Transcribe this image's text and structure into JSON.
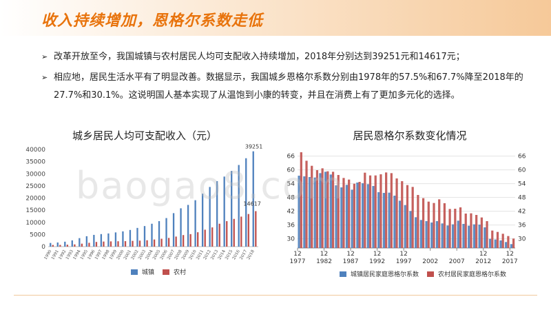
{
  "slide": {
    "title": "收入持续增加，恩格尔系数走低",
    "bullets": [
      "改革开放至今，我国城镇与农村居民人均可支配收入持续增加，2018年分别达到39251元和14617元；",
      "相应地，居民生活水平有了明显改善。数据显示，我国城乡恩格尔系数分别由1978年的57.5%和67.7%降至2018年的27.7%和30.1%。这说明国人基本实现了从温饱到小康的转变，并且在消费上有了更加多元化的选择。"
    ],
    "watermark": "baogao8.com",
    "arrow_glyph": "➢",
    "colors": {
      "title": "#e8730c",
      "urban": "#4f81bd",
      "rural": "#c0504d"
    }
  },
  "chart_data": [
    {
      "type": "bar",
      "title": "城乡居民人均可支配收入（元）",
      "categories": [
        "1990",
        "1991",
        "1992",
        "1993",
        "1994",
        "1995",
        "1996",
        "1997",
        "1998",
        "1999",
        "2000",
        "2001",
        "2002",
        "2003",
        "2004",
        "2005",
        "2006",
        "2007",
        "2008",
        "2009",
        "2010",
        "2011",
        "2012",
        "2013",
        "2014",
        "2015",
        "2016",
        "2017",
        "2018"
      ],
      "series": [
        {
          "name": "城镇",
          "values": [
            1510,
            1700,
            2027,
            2577,
            3496,
            4283,
            4839,
            5160,
            5425,
            5854,
            6280,
            6860,
            7703,
            8472,
            9422,
            10493,
            11759,
            13786,
            15781,
            17175,
            19109,
            21810,
            24565,
            26955,
            28844,
            31195,
            33616,
            36396,
            39251
          ]
        },
        {
          "name": "农村",
          "values": [
            686,
            709,
            784,
            922,
            1221,
            1578,
            1926,
            2090,
            2162,
            2210,
            2253,
            2366,
            2476,
            2622,
            2936,
            3255,
            3587,
            4140,
            4761,
            5153,
            5919,
            6977,
            7917,
            9430,
            10489,
            11422,
            12363,
            13432,
            14617
          ]
        }
      ],
      "data_labels": [
        "39251",
        "14617"
      ],
      "ylim": [
        0,
        40000
      ],
      "yticks": [
        "0",
        "5000",
        "10000",
        "15000",
        "20000",
        "25000",
        "30000",
        "35000",
        "40000"
      ],
      "legend": [
        "城镇",
        "农村"
      ],
      "legend_position": "bottom"
    },
    {
      "type": "bar",
      "title": "居民恩格尔系数变化情况",
      "categories": [
        "1978",
        "1979",
        "1980",
        "1981",
        "1982",
        "1983",
        "1984",
        "1985",
        "1986",
        "1987",
        "1988",
        "1989",
        "1990",
        "1991",
        "1992",
        "1993",
        "1994",
        "1995",
        "1996",
        "1997",
        "1998",
        "1999",
        "2000",
        "2001",
        "2002",
        "2003",
        "2004",
        "2005",
        "2006",
        "2007",
        "2008",
        "2009",
        "2010",
        "2011",
        "2012",
        "2013",
        "2014",
        "2015",
        "2016",
        "2017",
        "2018"
      ],
      "x_tick_labels": [
        {
          "month": "12",
          "year": "1977"
        },
        {
          "month": "12",
          "year": "1982"
        },
        {
          "month": "12",
          "year": "1987"
        },
        {
          "month": "12",
          "year": "1992"
        },
        {
          "month": "12",
          "year": "1997"
        },
        {
          "month": "",
          "year": "2002"
        },
        {
          "month": "",
          "year": "2007"
        },
        {
          "month": "12",
          "year": "2012"
        },
        {
          "month": "12",
          "year": "2017"
        }
      ],
      "series": [
        {
          "name": "城镇居民家庭恩格尔系数",
          "values": [
            57.5,
            57.2,
            56.9,
            56.7,
            58.6,
            59.2,
            58.0,
            53.3,
            52.4,
            53.5,
            51.4,
            54.5,
            54.2,
            53.8,
            53.0,
            50.3,
            50.0,
            50.1,
            48.8,
            46.6,
            44.7,
            42.1,
            39.4,
            38.2,
            37.7,
            37.1,
            37.7,
            36.7,
            35.8,
            36.3,
            37.9,
            36.5,
            35.7,
            36.3,
            36.2,
            35.0,
            30.0,
            29.7,
            29.3,
            28.6,
            27.7
          ]
        },
        {
          "name": "农村居民家庭恩格尔系数",
          "values": [
            67.7,
            64.0,
            61.8,
            59.9,
            60.7,
            59.4,
            59.2,
            57.8,
            56.5,
            55.8,
            54.0,
            54.8,
            58.8,
            57.6,
            57.6,
            58.1,
            58.9,
            58.6,
            56.3,
            55.1,
            53.4,
            52.6,
            49.1,
            47.7,
            46.2,
            45.6,
            47.2,
            45.5,
            43.0,
            43.1,
            43.7,
            41.0,
            41.1,
            40.4,
            39.3,
            37.7,
            33.6,
            33.0,
            32.2,
            31.2,
            30.1
          ]
        }
      ],
      "ylim": [
        26,
        68
      ],
      "yticks": [
        "30",
        "36",
        "42",
        "48",
        "54",
        "60",
        "66"
      ],
      "y2ticks": [
        "30",
        "36",
        "42",
        "48",
        "54",
        "60",
        "66"
      ],
      "legend": [
        "城镇居民家庭恩格尔系数",
        "农村居民家庭恩格尔系数"
      ],
      "legend_position": "bottom"
    }
  ]
}
